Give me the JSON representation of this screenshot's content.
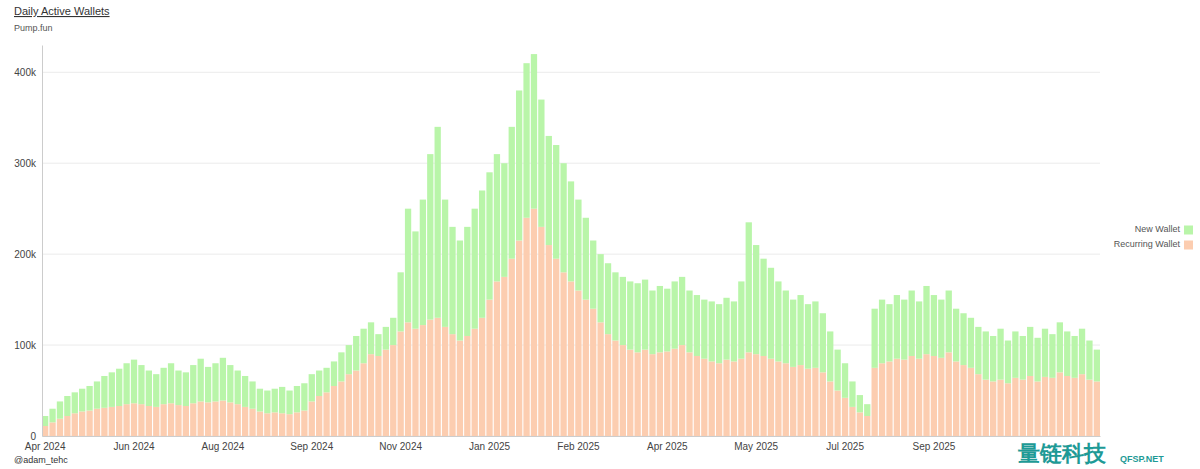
{
  "chart_data": {
    "type": "bar",
    "title": "Daily Active Wallets",
    "subtitle": "Pump.fun",
    "annotations": [
      "@adam_tehc",
      "量链科技",
      "QFSP.NET"
    ],
    "stacked": true,
    "grid": true,
    "legend": "right",
    "ylim": [
      0,
      430000
    ],
    "yticks": [
      0,
      {
        "value": 100000,
        "label": "100k"
      },
      {
        "value": 200000,
        "label": "200k"
      },
      {
        "value": 300000,
        "label": "300k"
      },
      {
        "value": 400000,
        "label": "400k"
      }
    ],
    "categories": [
      "Apr 2024",
      null,
      null,
      null,
      null,
      null,
      null,
      null,
      null,
      null,
      null,
      null,
      "Jun 2024",
      null,
      null,
      null,
      null,
      null,
      null,
      null,
      null,
      null,
      null,
      null,
      "Aug 2024",
      null,
      null,
      null,
      null,
      null,
      null,
      null,
      null,
      null,
      null,
      null,
      "Sep 2024",
      null,
      null,
      null,
      null,
      null,
      null,
      null,
      null,
      null,
      null,
      null,
      "Nov 2024",
      null,
      null,
      null,
      null,
      null,
      null,
      null,
      null,
      null,
      null,
      null,
      "Jan 2025",
      null,
      null,
      null,
      null,
      null,
      null,
      null,
      null,
      null,
      null,
      null,
      "Feb 2025",
      null,
      null,
      null,
      null,
      null,
      null,
      null,
      null,
      null,
      null,
      null,
      "Apr 2025",
      null,
      null,
      null,
      null,
      null,
      null,
      null,
      null,
      null,
      null,
      null,
      "May 2025",
      null,
      null,
      null,
      null,
      null,
      null,
      null,
      null,
      null,
      null,
      null,
      "Jul 2025",
      null,
      null,
      null,
      null,
      null,
      null,
      null,
      null,
      null,
      null,
      null,
      "Sep 2025",
      null,
      null,
      null,
      null,
      null,
      null,
      null,
      null,
      null,
      null,
      null,
      null,
      null,
      null,
      null,
      null,
      null,
      null,
      null,
      null,
      null,
      null
    ],
    "series": [
      {
        "name": "New Wallet",
        "color": "#b9f5a9",
        "values": [
          11000,
          15000,
          19000,
          22000,
          23000,
          25000,
          27000,
          30000,
          35000,
          38000,
          41000,
          45000,
          48000,
          43000,
          39000,
          36000,
          40000,
          44000,
          38000,
          37000,
          42000,
          47000,
          39000,
          42000,
          47000,
          41000,
          37000,
          34000,
          30000,
          25000,
          25000,
          26000,
          29000,
          26000,
          29000,
          30000,
          30000,
          28000,
          27000,
          27000,
          32000,
          32000,
          38000,
          38000,
          35000,
          24000,
          25000,
          30000,
          65000,
          125000,
          107000,
          138000,
          182000,
          210000,
          140000,
          118000,
          110000,
          120000,
          132000,
          140000,
          140000,
          140000,
          125000,
          145000,
          165000,
          170000,
          170000,
          140000,
          120000,
          125000,
          120000,
          110000,
          100000,
          90000,
          75000,
          75000,
          78000,
          75000,
          75000,
          75000,
          76000,
          77000,
          70000,
          73000,
          69000,
          74000,
          75000,
          68000,
          67000,
          65000,
          66000,
          65000,
          68000,
          66000,
          85000,
          143000,
          120000,
          107000,
          100000,
          88000,
          80000,
          74000,
          77000,
          71000,
          73000,
          65000,
          55000,
          45000,
          38000,
          28000,
          19000,
          13000,
          65000,
          70000,
          63000,
          70000,
          66000,
          72000,
          63000,
          75000,
          67000,
          64000,
          68000,
          58000,
          57000,
          55000,
          52000,
          53000,
          50000,
          56000,
          47000,
          51000,
          48000,
          54000,
          48000,
          53000,
          48000,
          55000,
          49000,
          46000,
          50000,
          43000,
          35000
        ]
      },
      {
        "name": "Recurring Wallet",
        "color": "#fccdb0",
        "values": [
          11000,
          15000,
          19000,
          22000,
          25000,
          27000,
          28000,
          30000,
          31000,
          32000,
          33000,
          35000,
          36000,
          35000,
          33000,
          32000,
          35000,
          36000,
          34000,
          33000,
          36000,
          38000,
          37000,
          38000,
          39000,
          37000,
          35000,
          32000,
          30000,
          27000,
          25000,
          26000,
          25000,
          24000,
          26000,
          28000,
          38000,
          44000,
          48000,
          55000,
          60000,
          68000,
          72000,
          80000,
          90000,
          88000,
          95000,
          100000,
          115000,
          125000,
          118000,
          122000,
          128000,
          130000,
          120000,
          112000,
          105000,
          110000,
          118000,
          130000,
          150000,
          170000,
          175000,
          195000,
          215000,
          240000,
          250000,
          230000,
          210000,
          195000,
          180000,
          170000,
          160000,
          150000,
          140000,
          125000,
          112000,
          105000,
          100000,
          95000,
          92000,
          95000,
          90000,
          92000,
          93000,
          96000,
          100000,
          92000,
          88000,
          85000,
          82000,
          80000,
          84000,
          82000,
          85000,
          92000,
          90000,
          88000,
          85000,
          82000,
          80000,
          76000,
          78000,
          74000,
          75000,
          70000,
          60000,
          50000,
          42000,
          32000,
          26000,
          22000,
          75000,
          80000,
          82000,
          85000,
          84000,
          88000,
          85000,
          90000,
          88000,
          86000,
          92000,
          82000,
          78000,
          75000,
          68000,
          62000,
          60000,
          62000,
          58000,
          64000,
          62000,
          66000,
          60000,
          65000,
          64000,
          70000,
          66000,
          64000,
          68000,
          62000,
          60000
        ]
      }
    ]
  }
}
